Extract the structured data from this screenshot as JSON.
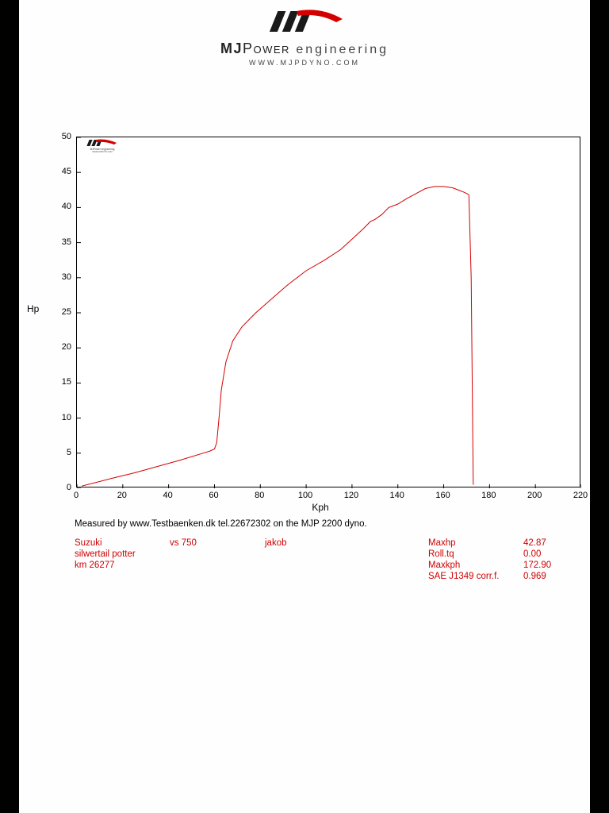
{
  "page_bg": "#010100",
  "paper_bg": "#fefefe",
  "brand": {
    "name_html_parts": {
      "mj": "MJ",
      "power": "Power",
      "eng": " engineering"
    },
    "url": "www.mjpdyno.com",
    "logo_colors": {
      "stripe": "#1a1a1a",
      "accent": "#d40000"
    }
  },
  "chart": {
    "type": "line",
    "xlabel": "Kph",
    "ylabel": "Hp",
    "xlim": [
      0,
      220
    ],
    "ylim": [
      0,
      50
    ],
    "xtick_step": 20,
    "ytick_step": 5,
    "xticks": [
      0,
      20,
      40,
      60,
      80,
      100,
      120,
      140,
      160,
      180,
      200,
      220
    ],
    "yticks": [
      0,
      5,
      10,
      15,
      20,
      25,
      30,
      35,
      40,
      45,
      50
    ],
    "border_color": "#000000",
    "background_color": "#ffffff",
    "line_color": "#d40000",
    "line_width": 1,
    "tick_fontsize": 11,
    "label_fontsize": 12,
    "series": {
      "x": [
        2,
        8,
        15,
        25,
        35,
        45,
        55,
        58,
        60,
        61,
        62,
        63,
        65,
        68,
        72,
        78,
        85,
        92,
        100,
        108,
        115,
        120,
        125,
        128,
        130,
        133,
        136,
        140,
        144,
        148,
        152,
        156,
        160,
        164,
        168,
        170,
        171,
        172,
        172.9
      ],
      "y": [
        0.3,
        0.8,
        1.4,
        2.2,
        3.1,
        4.0,
        5.0,
        5.3,
        5.6,
        6.5,
        10,
        14,
        18,
        21,
        23,
        25,
        27,
        29,
        31,
        32.5,
        34,
        35.5,
        37,
        38,
        38.3,
        39,
        40,
        40.5,
        41.3,
        42,
        42.7,
        43,
        43,
        42.8,
        42.3,
        42,
        41.8,
        30,
        0.5
      ]
    }
  },
  "caption": "Measured by www.Testbaenken.dk tel.22672302 on the MJP 2200 dyno.",
  "info_left": {
    "rows": [
      [
        "Suzuki",
        "vs 750",
        "jakob"
      ],
      [
        "silwertail potter",
        "",
        ""
      ],
      [
        "km 26277",
        "",
        ""
      ]
    ]
  },
  "info_right": {
    "rows": [
      [
        "Maxhp",
        "42.87"
      ],
      [
        "Roll.tq",
        "0.00"
      ],
      [
        "Maxkph",
        "172.90"
      ],
      [
        "SAE J1349 corr.f.",
        "0.969"
      ]
    ]
  },
  "info_color": "#d00000"
}
